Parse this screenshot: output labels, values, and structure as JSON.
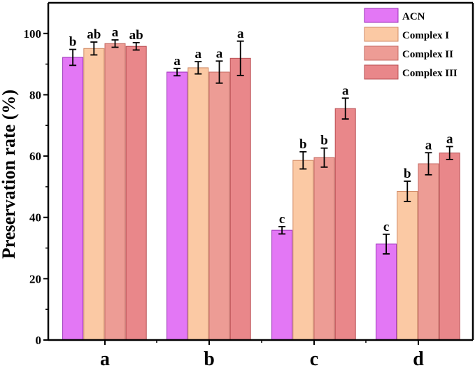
{
  "chart_data": {
    "type": "bar",
    "title": "",
    "xlabel": "",
    "ylabel": "Preservation rate (%)",
    "ylim": [
      0,
      110
    ],
    "yticks": [
      0,
      20,
      40,
      60,
      80,
      100
    ],
    "categories": [
      "a",
      "b",
      "c",
      "d"
    ],
    "legend_position": "top-right",
    "series": [
      {
        "name": "ACN",
        "color": "#e377f5",
        "edge": "#9b2fb8",
        "values": [
          92.2,
          87.4,
          35.8,
          31.3
        ],
        "errors": [
          2.6,
          1.2,
          1.2,
          3.2
        ],
        "labels": [
          "b",
          "a",
          "c",
          "c"
        ]
      },
      {
        "name": "Complex I",
        "color": "#fbc9a4",
        "edge": "#d08a66",
        "values": [
          95.1,
          88.8,
          58.6,
          48.5
        ],
        "errors": [
          2.1,
          2.0,
          2.8,
          3.3
        ],
        "labels": [
          "ab",
          "a",
          "b",
          "b"
        ]
      },
      {
        "name": "Complex II",
        "color": "#ed9c95",
        "edge": "#c56a62",
        "values": [
          96.7,
          87.4,
          59.5,
          57.5
        ],
        "errors": [
          1.2,
          3.6,
          3.1,
          3.6
        ],
        "labels": [
          "a",
          "a",
          "b",
          "a"
        ]
      },
      {
        "name": "Complex III",
        "color": "#e9878a",
        "edge": "#b95054",
        "values": [
          95.8,
          91.9,
          75.5,
          61.0
        ],
        "errors": [
          1.2,
          5.6,
          3.4,
          2.1
        ],
        "labels": [
          "ab",
          "a",
          "a",
          "a"
        ]
      }
    ]
  }
}
